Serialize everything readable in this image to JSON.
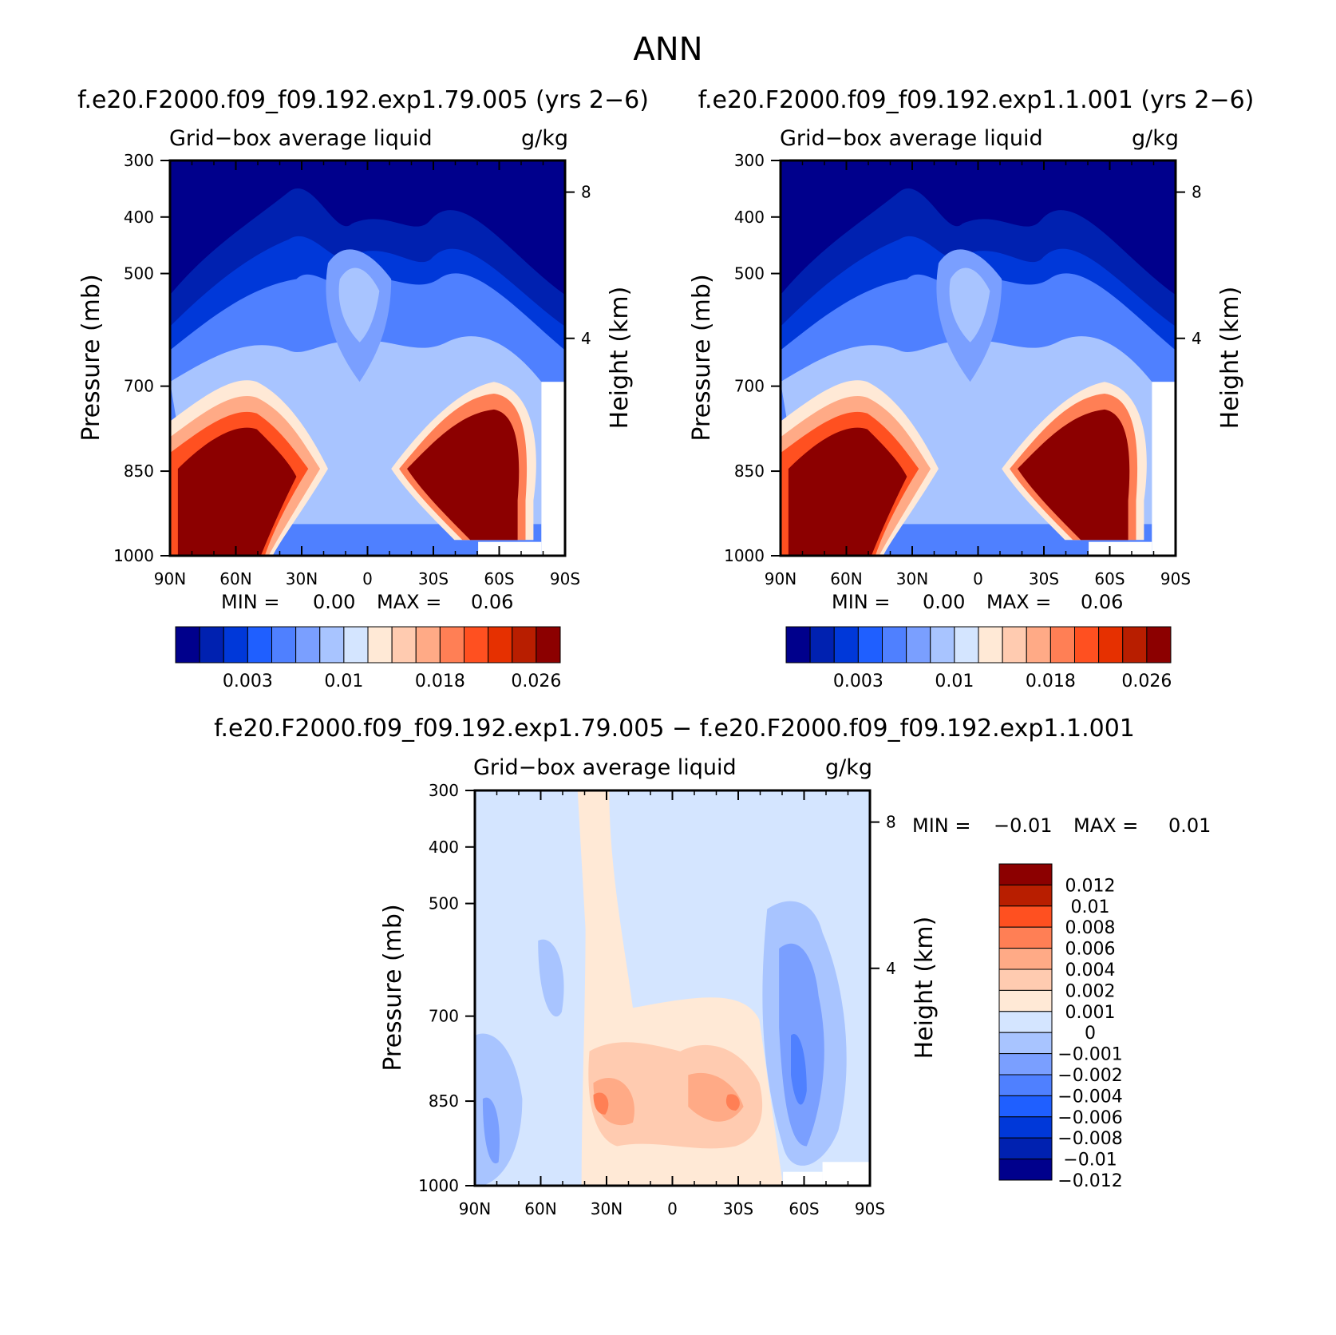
{
  "figure": {
    "title": "ANN",
    "diff_title": "f.e20.F2000.f09_f09.192.exp1.79.005 − f.e20.F2000.f09_f09.192.exp1.1.001"
  },
  "colors": {
    "seq_scale": [
      "#00008c",
      "#0021b0",
      "#0038d9",
      "#1f5fff",
      "#4f80ff",
      "#7a9fff",
      "#a8c4ff",
      "#d4e5ff",
      "#ffe9d6",
      "#ffcbb0",
      "#ffaa86",
      "#ff7f55",
      "#ff5020",
      "#e63000",
      "#b81e00",
      "#8c0000"
    ],
    "diff_scale": [
      "#00008c",
      "#0021b0",
      "#0038d9",
      "#1f5fff",
      "#4f80ff",
      "#7a9fff",
      "#a8c4ff",
      "#d4e5ff",
      "#ffe9d6",
      "#ffcbb0",
      "#ffaa86",
      "#ff7f55",
      "#ff5020",
      "#b81e00",
      "#8c0000"
    ]
  },
  "chart_data": [
    {
      "type": "heatmap",
      "title": "f.e20.F2000.f09_f09.192.exp1.79.005 (yrs 2−6)",
      "left_string": "Grid−box average liquid",
      "right_string": "g/kg",
      "xlabel": "",
      "ylabel": "Pressure (mb)",
      "y2label": "Height (km)",
      "x_ticks": [
        "90N",
        "60N",
        "30N",
        "0",
        "30S",
        "60S",
        "90S"
      ],
      "y_ticks": [
        "300",
        "400",
        "500",
        "700",
        "850",
        "1000"
      ],
      "y2_ticks": [
        "8",
        "4"
      ],
      "stats": {
        "min_label": "MIN =",
        "min": "0.00",
        "max_label": "MAX =",
        "max": "0.06"
      },
      "colorbar_labels": [
        "0.003",
        "0.01",
        "0.018",
        "0.026"
      ],
      "colorbar_levels": [
        0.001,
        0.002,
        0.003,
        0.004,
        0.006,
        0.008,
        0.01,
        0.012,
        0.014,
        0.016,
        0.018,
        0.02,
        0.022,
        0.024,
        0.026
      ],
      "values_description": "peak liquid water near 850 mb at 60N and 60S (>0.026 g/kg), minimum aloft above 500 mb"
    },
    {
      "type": "heatmap",
      "title": "f.e20.F2000.f09_f09.192.exp1.1.001 (yrs 2−6)",
      "left_string": "Grid−box average liquid",
      "right_string": "g/kg",
      "xlabel": "",
      "ylabel": "Pressure (mb)",
      "y2label": "Height (km)",
      "x_ticks": [
        "90N",
        "60N",
        "30N",
        "0",
        "30S",
        "60S",
        "90S"
      ],
      "y_ticks": [
        "300",
        "400",
        "500",
        "700",
        "850",
        "1000"
      ],
      "y2_ticks": [
        "8",
        "4"
      ],
      "stats": {
        "min_label": "MIN =",
        "min": "0.00",
        "max_label": "MAX =",
        "max": "0.06"
      },
      "colorbar_labels": [
        "0.003",
        "0.01",
        "0.018",
        "0.026"
      ],
      "colorbar_levels": [
        0.001,
        0.002,
        0.003,
        0.004,
        0.006,
        0.008,
        0.01,
        0.012,
        0.014,
        0.016,
        0.018,
        0.02,
        0.022,
        0.024,
        0.026
      ]
    },
    {
      "type": "heatmap",
      "title": "",
      "left_string": "Grid−box average liquid",
      "right_string": "g/kg",
      "xlabel": "",
      "ylabel": "Pressure (mb)",
      "y2label": "Height (km)",
      "x_ticks": [
        "90N",
        "60N",
        "30N",
        "0",
        "30S",
        "60S",
        "90S"
      ],
      "y_ticks": [
        "300",
        "400",
        "500",
        "700",
        "850",
        "1000"
      ],
      "y2_ticks": [
        "8",
        "4"
      ],
      "stats": {
        "min_label": "MIN =",
        "min": "−0.01",
        "max_label": "MAX =",
        "max": "0.01"
      },
      "colorbar_labels": [
        "0.012",
        "0.01",
        "0.008",
        "0.006",
        "0.004",
        "0.002",
        "0.001",
        "0",
        "−0.001",
        "−0.002",
        "−0.004",
        "−0.006",
        "−0.008",
        "−0.01",
        "−0.012"
      ]
    }
  ]
}
